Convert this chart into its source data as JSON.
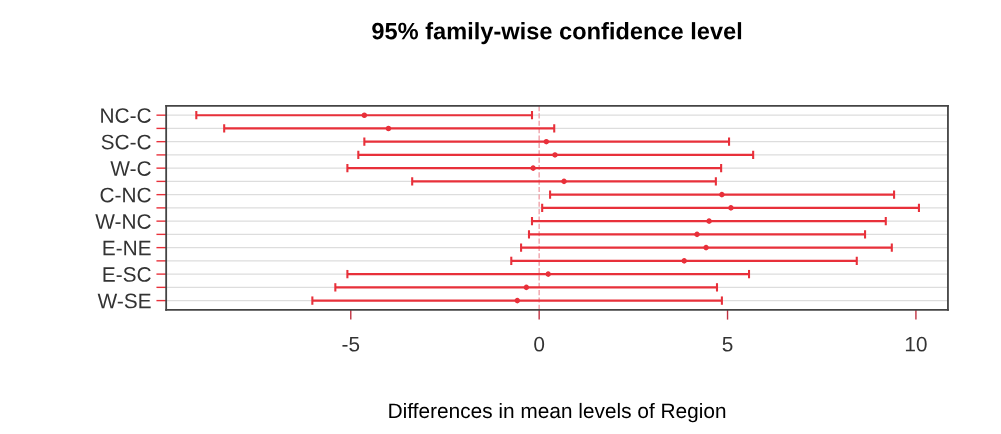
{
  "chart_data": {
    "type": "scatter",
    "orientation": "horizontal",
    "title": "95% family-wise confidence level",
    "xlabel": "Differences in mean levels of Region",
    "categories": [
      "NC-C",
      null,
      "SC-C",
      null,
      "W-C",
      null,
      "C-NC",
      null,
      "W-NC",
      null,
      "E-NE",
      null,
      "E-SC",
      null,
      "W-SE"
    ],
    "series": [
      {
        "color": "#e8303a",
        "values": [
          -4.64,
          -4.0,
          0.19,
          0.42,
          -0.16,
          0.66,
          4.85,
          5.09,
          4.51,
          4.19,
          4.43,
          3.85,
          0.24,
          -0.34,
          -0.58
        ],
        "errors": [
          [
            -9.1,
            -0.19
          ],
          [
            -8.36,
            0.4
          ],
          [
            -4.64,
            5.04
          ],
          [
            -4.8,
            5.68
          ],
          [
            -5.09,
            4.83
          ],
          [
            -3.37,
            4.69
          ],
          [
            0.29,
            9.42
          ],
          [
            0.08,
            10.08
          ],
          [
            -0.19,
            9.2
          ],
          [
            -0.27,
            8.65
          ],
          [
            -0.48,
            9.36
          ],
          [
            -0.74,
            8.43
          ],
          [
            -5.09,
            5.57
          ],
          [
            -5.41,
            4.72
          ],
          [
            -6.02,
            4.85
          ]
        ]
      }
    ],
    "xlim": [
      -9.9,
      10.85
    ],
    "xticks": [
      -5,
      0,
      5,
      10
    ],
    "grid": "y",
    "marker": "circle",
    "ref_lines": [
      {
        "axis": "x",
        "value": 0,
        "color": "#f0a0a8",
        "line_style": "dashed"
      }
    ]
  }
}
